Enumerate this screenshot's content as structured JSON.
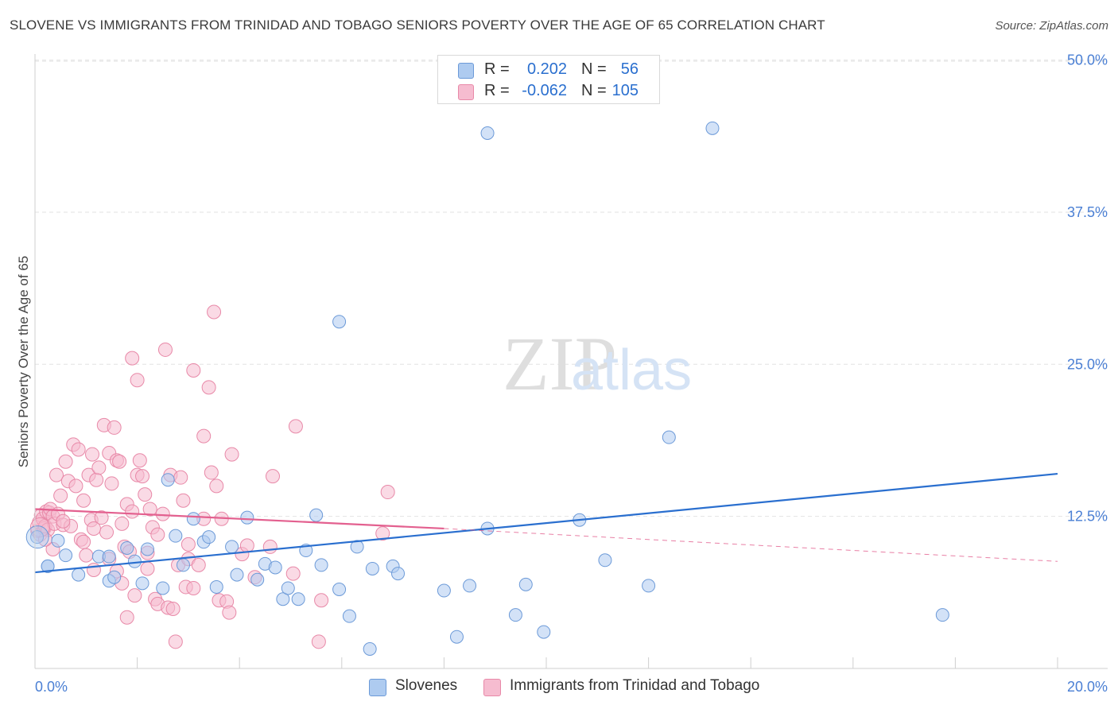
{
  "header": {
    "title": "SLOVENE VS IMMIGRANTS FROM TRINIDAD AND TOBAGO SENIORS POVERTY OVER THE AGE OF 65 CORRELATION CHART",
    "source": "Source: ZipAtlas.com"
  },
  "watermark": {
    "zip": "ZIP",
    "atlas": "atlas"
  },
  "legend_top": {
    "rows": [
      {
        "r_label": "R =",
        "r_value": "0.202",
        "n_label": "N =",
        "n_value": "56"
      },
      {
        "r_label": "R =",
        "r_value": "-0.062",
        "n_label": "N =",
        "n_value": "105"
      }
    ]
  },
  "legend_bottom": {
    "items": [
      {
        "label": "Slovenes"
      },
      {
        "label": "Immigrants from Trinidad and Tobago"
      }
    ]
  },
  "colors": {
    "blue_fill": "#aecbf0",
    "blue_stroke": "#6c9ad8",
    "blue_line": "#2a6fcf",
    "pink_fill": "#f6bcd0",
    "pink_stroke": "#e889a8",
    "pink_line": "#e3608f",
    "tick_text": "#4a7fd4",
    "grid": "#e2e2e2"
  },
  "chart_data": {
    "type": "scatter",
    "title": "SLOVENE VS IMMIGRANTS FROM TRINIDAD AND TOBAGO SENIORS POVERTY OVER THE AGE OF 65 CORRELATION CHART",
    "xlabel": "",
    "ylabel": "Seniors Poverty Over the Age of 65",
    "xlim": [
      0,
      20
    ],
    "ylim": [
      0,
      52
    ],
    "x_tick_labels": [
      "0.0%",
      "20.0%"
    ],
    "y_ticks": [
      12.5,
      25.0,
      37.5,
      50.0
    ],
    "y_tick_labels": [
      "12.5%",
      "25.0%",
      "37.5%",
      "50.0%"
    ],
    "series": [
      {
        "name": "Slovenes",
        "r": 0.202,
        "n": 56,
        "trend": {
          "x0": 0,
          "y0": 7.9,
          "x1": 20,
          "y1": 16.0
        },
        "points": [
          [
            0.04,
            10.8
          ],
          [
            0.25,
            8.4
          ],
          [
            0.45,
            10.5
          ],
          [
            0.6,
            9.3
          ],
          [
            0.85,
            7.7
          ],
          [
            1.25,
            9.2
          ],
          [
            1.45,
            7.2
          ],
          [
            1.55,
            7.5
          ],
          [
            1.8,
            9.9
          ],
          [
            1.95,
            8.8
          ],
          [
            2.1,
            7.0
          ],
          [
            2.2,
            9.8
          ],
          [
            2.5,
            6.6
          ],
          [
            2.6,
            15.5
          ],
          [
            2.75,
            10.9
          ],
          [
            2.9,
            8.5
          ],
          [
            3.1,
            12.3
          ],
          [
            3.3,
            10.4
          ],
          [
            3.4,
            10.8
          ],
          [
            3.55,
            6.7
          ],
          [
            3.85,
            10.0
          ],
          [
            3.95,
            7.7
          ],
          [
            4.15,
            12.4
          ],
          [
            4.35,
            7.3
          ],
          [
            4.5,
            8.6
          ],
          [
            4.7,
            8.3
          ],
          [
            4.85,
            5.7
          ],
          [
            4.95,
            6.6
          ],
          [
            5.15,
            5.7
          ],
          [
            5.3,
            9.7
          ],
          [
            5.5,
            12.6
          ],
          [
            5.6,
            8.5
          ],
          [
            5.95,
            28.5
          ],
          [
            5.95,
            6.5
          ],
          [
            6.15,
            4.3
          ],
          [
            6.3,
            10.0
          ],
          [
            6.55,
            1.6
          ],
          [
            6.6,
            8.2
          ],
          [
            7.0,
            8.4
          ],
          [
            7.1,
            7.8
          ],
          [
            8.0,
            6.4
          ],
          [
            8.25,
            2.6
          ],
          [
            8.5,
            6.8
          ],
          [
            8.85,
            44.0
          ],
          [
            8.85,
            11.5
          ],
          [
            9.4,
            4.4
          ],
          [
            9.6,
            6.9
          ],
          [
            9.95,
            3.0
          ],
          [
            10.65,
            12.2
          ],
          [
            11.15,
            8.9
          ],
          [
            12.0,
            6.8
          ],
          [
            12.4,
            19.0
          ],
          [
            13.25,
            44.4
          ],
          [
            17.75,
            4.4
          ],
          [
            0.25,
            8.4
          ],
          [
            1.45,
            9.2
          ]
        ]
      },
      {
        "name": "Immigrants from Trinidad and Tobago",
        "r": -0.062,
        "n": 105,
        "trend": {
          "x0": 0,
          "y0": 13.1,
          "x1": 8,
          "y1": 11.5,
          "dash_x1": 20,
          "dash_y1": 8.8
        },
        "points": [
          [
            0.05,
            11.3
          ],
          [
            0.08,
            12.0
          ],
          [
            0.1,
            11.0
          ],
          [
            0.12,
            12.6
          ],
          [
            0.15,
            12.3
          ],
          [
            0.18,
            11.5
          ],
          [
            0.2,
            11.7
          ],
          [
            0.22,
            12.9
          ],
          [
            0.25,
            11.4
          ],
          [
            0.28,
            12.8
          ],
          [
            0.3,
            13.1
          ],
          [
            0.35,
            12.5
          ],
          [
            0.38,
            11.9
          ],
          [
            0.42,
            15.9
          ],
          [
            0.45,
            12.7
          ],
          [
            0.5,
            14.2
          ],
          [
            0.55,
            11.8
          ],
          [
            0.6,
            17.0
          ],
          [
            0.65,
            15.4
          ],
          [
            0.7,
            11.7
          ],
          [
            0.75,
            18.4
          ],
          [
            0.8,
            15.0
          ],
          [
            0.85,
            18.0
          ],
          [
            0.9,
            10.6
          ],
          [
            0.95,
            10.4
          ],
          [
            1.0,
            9.3
          ],
          [
            1.05,
            15.9
          ],
          [
            1.1,
            12.2
          ],
          [
            1.12,
            17.6
          ],
          [
            1.15,
            8.1
          ],
          [
            1.2,
            15.5
          ],
          [
            1.25,
            16.5
          ],
          [
            1.3,
            12.4
          ],
          [
            1.35,
            20.0
          ],
          [
            1.4,
            11.2
          ],
          [
            1.45,
            17.7
          ],
          [
            1.5,
            15.2
          ],
          [
            1.55,
            19.8
          ],
          [
            1.6,
            8.0
          ],
          [
            1.6,
            17.1
          ],
          [
            1.65,
            17.0
          ],
          [
            1.7,
            11.9
          ],
          [
            1.75,
            10.0
          ],
          [
            1.8,
            13.5
          ],
          [
            1.8,
            4.2
          ],
          [
            1.85,
            9.6
          ],
          [
            1.9,
            12.9
          ],
          [
            1.9,
            25.5
          ],
          [
            1.95,
            6.0
          ],
          [
            2.0,
            23.7
          ],
          [
            2.0,
            15.9
          ],
          [
            2.05,
            17.1
          ],
          [
            2.1,
            15.8
          ],
          [
            2.15,
            14.3
          ],
          [
            2.2,
            9.5
          ],
          [
            2.25,
            13.1
          ],
          [
            2.3,
            11.6
          ],
          [
            2.35,
            5.7
          ],
          [
            2.4,
            5.3
          ],
          [
            2.5,
            12.7
          ],
          [
            2.55,
            26.2
          ],
          [
            2.6,
            5.0
          ],
          [
            2.65,
            15.9
          ],
          [
            2.7,
            4.9
          ],
          [
            2.75,
            2.2
          ],
          [
            2.8,
            8.5
          ],
          [
            2.85,
            15.7
          ],
          [
            2.9,
            13.8
          ],
          [
            2.95,
            6.7
          ],
          [
            3.0,
            9.0
          ],
          [
            3.1,
            6.6
          ],
          [
            3.1,
            24.5
          ],
          [
            3.2,
            8.5
          ],
          [
            3.3,
            12.3
          ],
          [
            3.3,
            19.1
          ],
          [
            3.4,
            23.1
          ],
          [
            3.45,
            16.1
          ],
          [
            3.5,
            29.3
          ],
          [
            3.55,
            15.0
          ],
          [
            3.6,
            5.6
          ],
          [
            3.65,
            12.3
          ],
          [
            3.75,
            5.5
          ],
          [
            3.8,
            4.6
          ],
          [
            3.85,
            17.6
          ],
          [
            4.05,
            9.4
          ],
          [
            4.15,
            10.1
          ],
          [
            4.3,
            7.5
          ],
          [
            4.6,
            10.0
          ],
          [
            4.65,
            15.8
          ],
          [
            5.05,
            7.8
          ],
          [
            5.1,
            19.9
          ],
          [
            5.55,
            2.2
          ],
          [
            5.6,
            5.6
          ],
          [
            6.8,
            11.1
          ],
          [
            6.9,
            14.5
          ],
          [
            1.15,
            11.5
          ],
          [
            0.55,
            12.1
          ],
          [
            0.35,
            9.8
          ],
          [
            1.45,
            9.0
          ],
          [
            2.2,
            8.2
          ],
          [
            0.95,
            13.8
          ],
          [
            1.7,
            7.0
          ],
          [
            2.4,
            11.0
          ],
          [
            3.0,
            10.2
          ],
          [
            0.2,
            10.6
          ]
        ]
      }
    ]
  }
}
